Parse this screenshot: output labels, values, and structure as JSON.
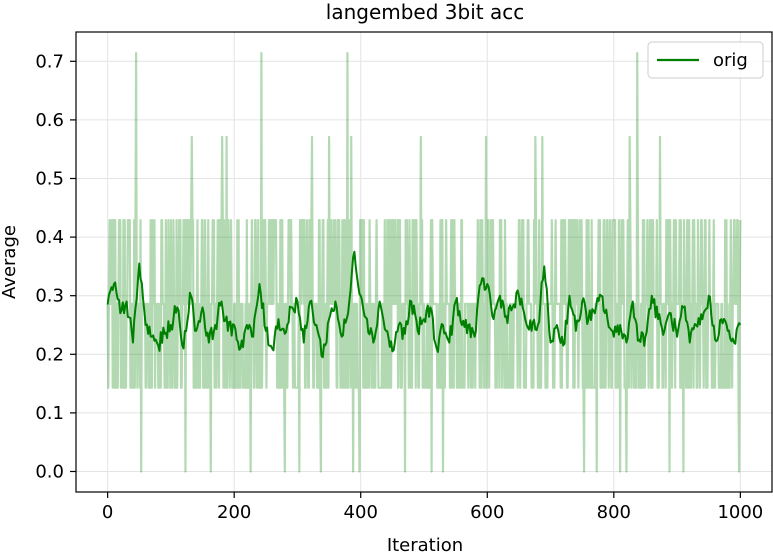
{
  "chart_data": {
    "type": "line",
    "title": "langembed 3bit acc",
    "xlabel": "Iteration",
    "ylabel": "Average",
    "xlim": [
      -50,
      1050
    ],
    "ylim": [
      -0.035,
      0.75
    ],
    "xticks": [
      0,
      200,
      400,
      600,
      800,
      1000
    ],
    "yticks": [
      0.0,
      0.1,
      0.2,
      0.3,
      0.4,
      0.5,
      0.6,
      0.7
    ],
    "xtick_labels": [
      "0",
      "200",
      "400",
      "600",
      "800",
      "1000"
    ],
    "ytick_labels": [
      "0.0",
      "0.1",
      "0.2",
      "0.3",
      "0.4",
      "0.5",
      "0.6",
      "0.7"
    ],
    "grid": true,
    "legend_position": "top-right",
    "raw_levels": [
      0.0,
      0.143,
      0.286,
      0.429,
      0.571,
      0.714
    ],
    "raw_typical_range": [
      0.143,
      0.429
    ],
    "raw_spikes": [
      {
        "x": 45,
        "y": 0.714
      },
      {
        "x": 53,
        "y": 0.0
      },
      {
        "x": 123,
        "y": 0.0
      },
      {
        "x": 133,
        "y": 0.571
      },
      {
        "x": 163,
        "y": 0.0
      },
      {
        "x": 181,
        "y": 0.571
      },
      {
        "x": 188,
        "y": 0.571
      },
      {
        "x": 226,
        "y": 0.0
      },
      {
        "x": 243,
        "y": 0.714
      },
      {
        "x": 280,
        "y": 0.0
      },
      {
        "x": 303,
        "y": 0.0
      },
      {
        "x": 323,
        "y": 0.571
      },
      {
        "x": 337,
        "y": 0.0
      },
      {
        "x": 350,
        "y": 0.571
      },
      {
        "x": 379,
        "y": 0.714
      },
      {
        "x": 385,
        "y": 0.571
      },
      {
        "x": 388,
        "y": 0.0
      },
      {
        "x": 398,
        "y": 0.0
      },
      {
        "x": 470,
        "y": 0.0
      },
      {
        "x": 495,
        "y": 0.571
      },
      {
        "x": 512,
        "y": 0.0
      },
      {
        "x": 530,
        "y": 0.0
      },
      {
        "x": 598,
        "y": 0.571
      },
      {
        "x": 676,
        "y": 0.571
      },
      {
        "x": 687,
        "y": 0.571
      },
      {
        "x": 753,
        "y": 0.0
      },
      {
        "x": 773,
        "y": 0.0
      },
      {
        "x": 810,
        "y": 0.0
      },
      {
        "x": 820,
        "y": 0.0
      },
      {
        "x": 825,
        "y": 0.571
      },
      {
        "x": 837,
        "y": 0.714
      },
      {
        "x": 873,
        "y": 0.571
      },
      {
        "x": 888,
        "y": 0.0
      },
      {
        "x": 910,
        "y": 0.0
      },
      {
        "x": 998,
        "y": 0.0
      }
    ],
    "series": [
      {
        "name": "orig",
        "color": "#008000",
        "x": [
          0,
          10,
          20,
          30,
          40,
          50,
          60,
          70,
          80,
          90,
          100,
          110,
          120,
          130,
          140,
          150,
          160,
          170,
          180,
          190,
          200,
          210,
          220,
          230,
          240,
          250,
          260,
          270,
          280,
          290,
          300,
          310,
          320,
          330,
          340,
          350,
          360,
          370,
          380,
          390,
          400,
          410,
          420,
          430,
          440,
          450,
          460,
          470,
          480,
          490,
          500,
          510,
          520,
          530,
          540,
          550,
          560,
          570,
          580,
          590,
          600,
          610,
          620,
          630,
          640,
          650,
          660,
          670,
          680,
          690,
          700,
          710,
          720,
          730,
          740,
          750,
          760,
          770,
          780,
          790,
          800,
          810,
          820,
          830,
          840,
          850,
          860,
          870,
          880,
          890,
          900,
          910,
          920,
          930,
          940,
          950,
          960,
          970,
          980,
          990,
          1000
        ],
        "values": [
          0.285,
          0.32,
          0.27,
          0.29,
          0.22,
          0.355,
          0.25,
          0.23,
          0.215,
          0.235,
          0.25,
          0.28,
          0.21,
          0.305,
          0.24,
          0.28,
          0.22,
          0.25,
          0.29,
          0.24,
          0.25,
          0.21,
          0.25,
          0.23,
          0.32,
          0.24,
          0.21,
          0.26,
          0.235,
          0.28,
          0.29,
          0.22,
          0.29,
          0.25,
          0.195,
          0.26,
          0.29,
          0.23,
          0.27,
          0.375,
          0.3,
          0.26,
          0.22,
          0.29,
          0.24,
          0.205,
          0.25,
          0.235,
          0.29,
          0.24,
          0.26,
          0.28,
          0.21,
          0.25,
          0.22,
          0.29,
          0.25,
          0.25,
          0.23,
          0.32,
          0.32,
          0.26,
          0.3,
          0.265,
          0.28,
          0.3,
          0.26,
          0.24,
          0.25,
          0.35,
          0.22,
          0.25,
          0.215,
          0.3,
          0.24,
          0.29,
          0.26,
          0.27,
          0.3,
          0.26,
          0.23,
          0.25,
          0.22,
          0.29,
          0.225,
          0.23,
          0.3,
          0.26,
          0.24,
          0.27,
          0.23,
          0.28,
          0.22,
          0.25,
          0.26,
          0.3,
          0.225,
          0.26,
          0.24,
          0.22,
          0.25
        ]
      }
    ]
  }
}
